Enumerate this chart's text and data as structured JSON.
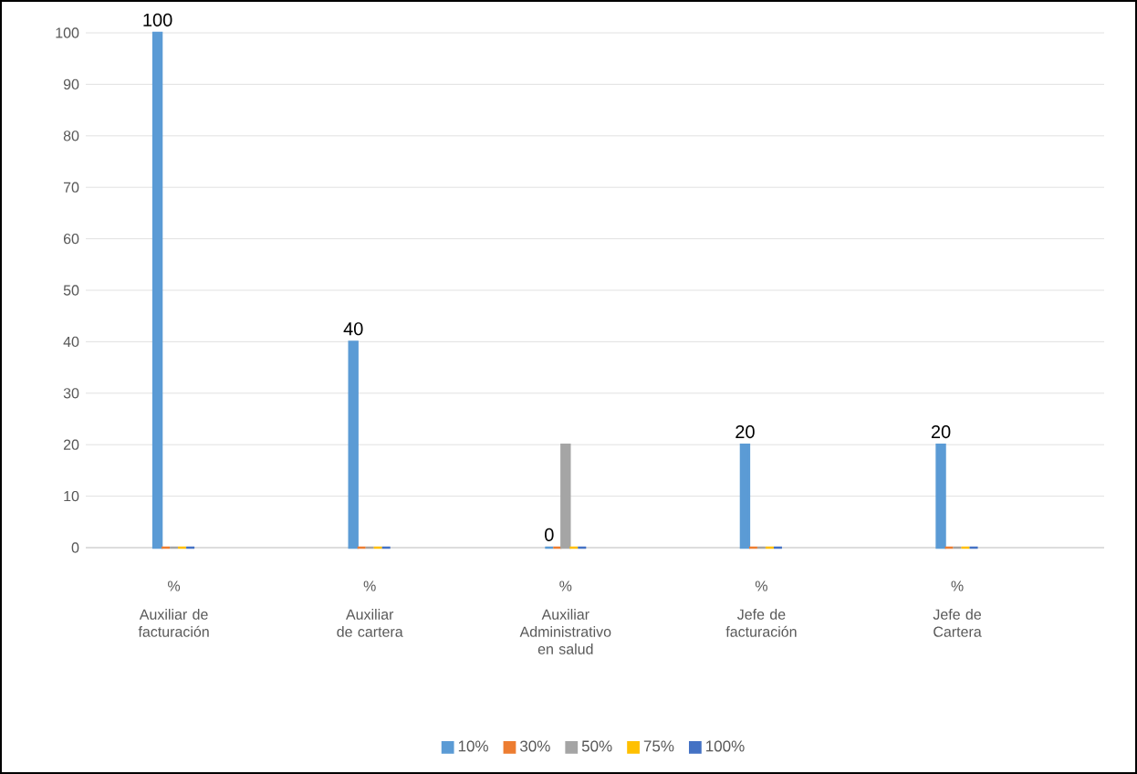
{
  "chart_data": {
    "type": "bar",
    "categories": [
      "Auxiliar de facturación",
      "Auxiliar de cartera",
      "Auxiliar Administrativo en salud",
      "Jefe de facturación",
      "Jefe de Cartera"
    ],
    "series": [
      {
        "name": "10%",
        "color": "#5b9bd5",
        "values": [
          100,
          40,
          0,
          20,
          20
        ],
        "value_labels": [
          "100",
          "40",
          "0",
          "20",
          "20"
        ]
      },
      {
        "name": "30%",
        "color": "#ed7d31",
        "values": [
          0,
          0,
          0,
          0,
          0
        ]
      },
      {
        "name": "50%",
        "color": "#a5a5a5",
        "values": [
          0,
          0,
          20,
          0,
          0
        ]
      },
      {
        "name": "75%",
        "color": "#ffc000",
        "values": [
          0,
          0,
          0,
          0,
          0
        ]
      },
      {
        "name": "100%",
        "color": "#4472c4",
        "values": [
          0,
          0,
          0,
          0,
          0
        ]
      }
    ],
    "annotations": [
      "%",
      "%",
      "%",
      "%",
      "%"
    ],
    "ylim": [
      0,
      100
    ],
    "yticks": [
      0,
      10,
      20,
      30,
      40,
      50,
      60,
      70,
      80,
      90,
      100
    ],
    "grid": "y",
    "legend": "bottom"
  }
}
